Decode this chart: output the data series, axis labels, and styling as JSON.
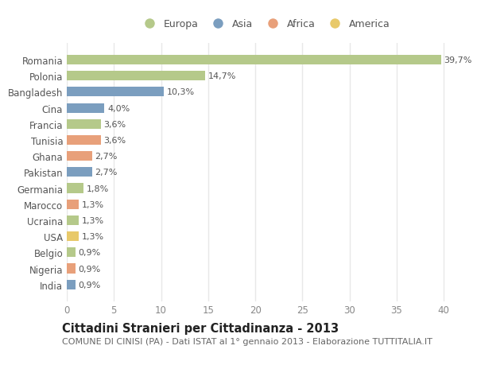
{
  "categories": [
    "India",
    "Nigeria",
    "Belgio",
    "USA",
    "Ucraina",
    "Marocco",
    "Germania",
    "Pakistan",
    "Ghana",
    "Tunisia",
    "Francia",
    "Cina",
    "Bangladesh",
    "Polonia",
    "Romania"
  ],
  "values": [
    0.9,
    0.9,
    0.9,
    1.3,
    1.3,
    1.3,
    1.8,
    2.7,
    2.7,
    3.6,
    3.6,
    4.0,
    10.3,
    14.7,
    39.7
  ],
  "labels": [
    "0,9%",
    "0,9%",
    "0,9%",
    "1,3%",
    "1,3%",
    "1,3%",
    "1,8%",
    "2,7%",
    "2,7%",
    "3,6%",
    "3,6%",
    "4,0%",
    "10,3%",
    "14,7%",
    "39,7%"
  ],
  "colors": [
    "#7b9ebf",
    "#e8a07a",
    "#b5c98a",
    "#e8c96a",
    "#b5c98a",
    "#e8a07a",
    "#b5c98a",
    "#7b9ebf",
    "#e8a07a",
    "#e8a07a",
    "#b5c98a",
    "#7b9ebf",
    "#7b9ebf",
    "#b5c98a",
    "#b5c98a"
  ],
  "legend_labels": [
    "Europa",
    "Asia",
    "Africa",
    "America"
  ],
  "legend_colors": [
    "#b5c98a",
    "#7b9ebf",
    "#e8a07a",
    "#e8c96a"
  ],
  "title": "Cittadini Stranieri per Cittadinanza - 2013",
  "subtitle": "COMUNE DI CINISI (PA) - Dati ISTAT al 1° gennaio 2013 - Elaborazione TUTTITALIA.IT",
  "xlim": [
    0,
    42
  ],
  "xticks": [
    0,
    5,
    10,
    15,
    20,
    25,
    30,
    35,
    40
  ],
  "bg_color": "#ffffff",
  "grid_color": "#e8e8e8",
  "bar_height": 0.6,
  "title_fontsize": 10.5,
  "subtitle_fontsize": 8,
  "label_fontsize": 8,
  "tick_fontsize": 8.5,
  "legend_fontsize": 9
}
